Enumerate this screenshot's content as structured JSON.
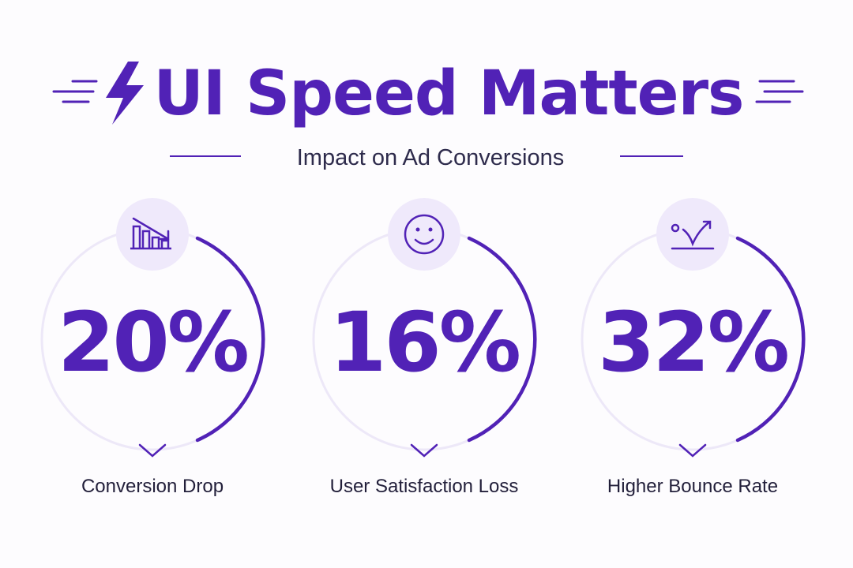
{
  "header": {
    "title": "UI Speed Matters",
    "subtitle": "Impact on Ad Conversions"
  },
  "stats": [
    {
      "value": "20%",
      "label": "Conversion Drop"
    },
    {
      "value": "16%",
      "label": "User Satisfaction Loss"
    },
    {
      "value": "32%",
      "label": "Higher Bounce Rate"
    }
  ]
}
